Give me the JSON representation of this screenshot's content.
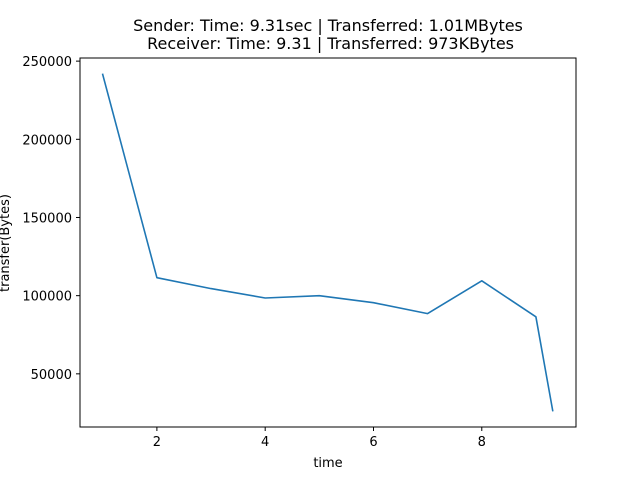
{
  "chart_data": {
    "type": "line",
    "title_line1": "Sender: Time: 9.31sec | Transferred: 1.01MBytes",
    "title_line2": " Receiver: Time: 9.31 | Transferred: 973KBytes",
    "xlabel": "time",
    "ylabel": "transfer(Bytes)",
    "xlim": [
      0.58,
      9.74
    ],
    "ylim": [
      16000,
      252000
    ],
    "xticks": [
      2,
      4,
      6,
      8
    ],
    "yticks": [
      50000,
      100000,
      150000,
      200000,
      250000
    ],
    "grid": false,
    "series": [
      {
        "color": "#1f77b4",
        "x": [
          1,
          2,
          3,
          4,
          5,
          6,
          7,
          8,
          9,
          9.31
        ],
        "y": [
          241500,
          111500,
          104500,
          98500,
          100000,
          95500,
          88500,
          109500,
          86500,
          26500
        ]
      }
    ]
  }
}
